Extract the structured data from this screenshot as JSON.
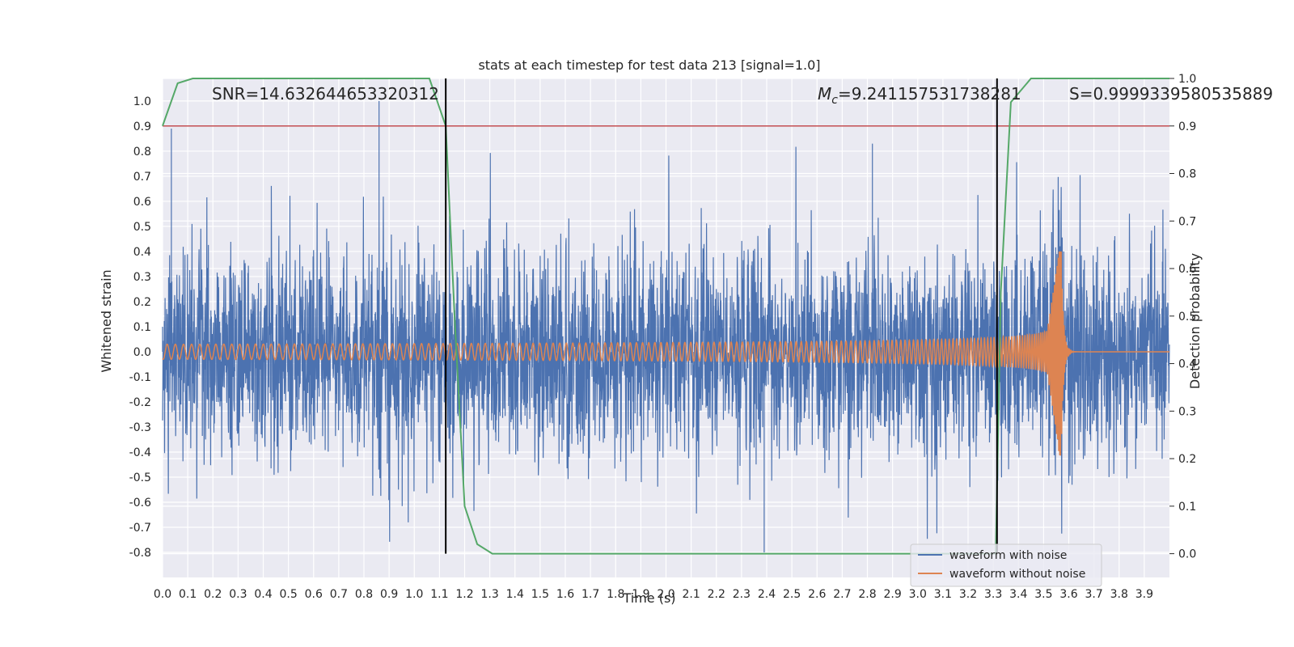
{
  "chart_data": {
    "type": "line",
    "title": "stats at each timestep for test data 213 [signal=1.0]",
    "xlabel": "Time (s)",
    "ylabel_left": "Whitened strain",
    "ylabel_right": "Detection probability",
    "xlim": [
      0.0,
      4.0
    ],
    "ylim_left": [
      -0.9,
      1.09
    ],
    "ylim_right": [
      -0.05,
      1.0
    ],
    "x_ticks": [
      "0.0",
      "0.1",
      "0.2",
      "0.3",
      "0.4",
      "0.5",
      "0.6",
      "0.7",
      "0.8",
      "0.9",
      "1.0",
      "1.1",
      "1.2",
      "1.3",
      "1.4",
      "1.5",
      "1.6",
      "1.7",
      "1.8",
      "1.9",
      "2.0",
      "2.1",
      "2.2",
      "2.3",
      "2.4",
      "2.5",
      "2.6",
      "2.7",
      "2.8",
      "2.9",
      "3.0",
      "3.1",
      "3.2",
      "3.3",
      "3.4",
      "3.5",
      "3.6",
      "3.7",
      "3.8",
      "3.9"
    ],
    "y_ticks_left": [
      "1.0",
      "0.9",
      "0.8",
      "0.7",
      "0.6",
      "0.5",
      "0.4",
      "0.3",
      "0.2",
      "0.1",
      "0.0",
      "-0.1",
      "-0.2",
      "-0.3",
      "-0.4",
      "-0.5",
      "-0.6",
      "-0.7",
      "-0.8"
    ],
    "y_ticks_right": [
      "1.0",
      "0.9",
      "0.8",
      "0.7",
      "0.6",
      "0.5",
      "0.4",
      "0.3",
      "0.2",
      "0.1",
      "0.0"
    ],
    "grid": true,
    "legend_position": "bottom-right",
    "annotations": {
      "snr": "SNR=14.632644653320312",
      "mc_symbol": "M",
      "mc_sub": "c",
      "mc_value": "=9.241157531738281",
      "s": "S=0.9999339580535889"
    },
    "threshold_line": {
      "y_right": 0.9,
      "color": "#c44e52"
    },
    "vertical_lines": [
      {
        "x": 1.125
      },
      {
        "x": 3.315
      }
    ],
    "series": [
      {
        "name": "waveform with noise",
        "color": "#4c72b0",
        "axis": "left",
        "description_points": [
          [
            0.0,
            0.1
          ],
          [
            0.035,
            0.89
          ],
          [
            0.86,
            1.0
          ],
          [
            2.82,
            0.83
          ],
          [
            2.39,
            -0.8
          ],
          [
            3.58,
            0.4
          ]
        ]
      },
      {
        "name": "waveform without noise",
        "color": "#dd8452",
        "axis": "left",
        "peak_x": 3.57,
        "peak_y": 0.4,
        "min_y": -0.5
      },
      {
        "name": "",
        "color": "#55a868",
        "axis": "right",
        "x": [
          0.0,
          0.06,
          0.12,
          0.2,
          1.06,
          1.125,
          1.16,
          1.2,
          1.25,
          1.31,
          3.0,
          3.31,
          3.33,
          3.37,
          3.45,
          4.0
        ],
        "y": [
          0.9,
          0.99,
          1.0,
          1.0,
          1.0,
          0.9,
          0.5,
          0.1,
          0.02,
          0.0,
          0.0,
          0.0,
          0.55,
          0.95,
          1.0,
          1.0
        ]
      }
    ],
    "colors": {
      "background": "#eaeaf2",
      "grid": "#ffffff",
      "vline": "#000000"
    }
  }
}
